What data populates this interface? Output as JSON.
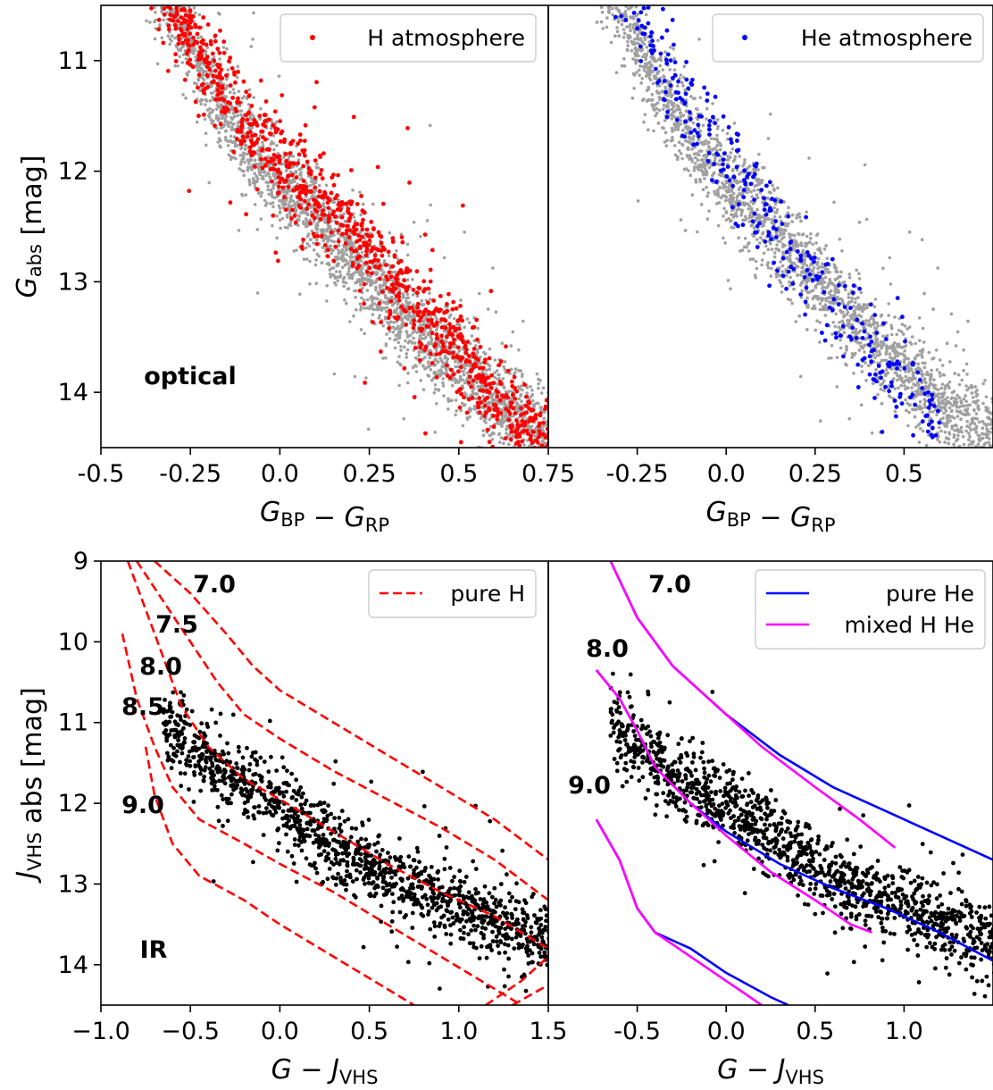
{
  "chart_data": [
    {
      "panel": "top-left",
      "type": "scatter",
      "xlabel": "G_BP − G_RP",
      "ylabel": "G_abs [mag]",
      "xlim": [
        -0.5,
        0.75
      ],
      "ylim": [
        14.5,
        10.5
      ],
      "xticks": [
        -0.5,
        -0.25,
        0.0,
        0.25,
        0.5,
        0.75
      ],
      "xtick_labels": [
        "-0.5",
        "-0.25",
        "0.0",
        "0.25",
        "0.5",
        "0.75"
      ],
      "yticks": [
        11,
        12,
        13,
        14
      ],
      "ytick_labels": [
        "11",
        "12",
        "13",
        "14"
      ],
      "annotation": "optical",
      "legend": {
        "position": "upper right",
        "entries": [
          {
            "label": "H atmosphere",
            "color": "#ff0000",
            "marker": "dot"
          }
        ]
      },
      "series": [
        {
          "name": "H atmosphere",
          "color": "#ff0000",
          "trend": [
            [
              -0.3,
              10.5
            ],
            [
              -0.2,
              11.1
            ],
            [
              -0.1,
              11.6
            ],
            [
              0.0,
              11.9
            ],
            [
              0.1,
              12.2
            ],
            [
              0.2,
              12.5
            ],
            [
              0.3,
              12.9
            ],
            [
              0.4,
              13.3
            ],
            [
              0.5,
              13.6
            ],
            [
              0.6,
              14.0
            ],
            [
              0.7,
              14.3
            ]
          ],
          "count": 1100
        },
        {
          "name": "",
          "color": "#a0a0a0",
          "trend": [
            [
              -0.3,
              10.5
            ],
            [
              -0.2,
              11.2
            ],
            [
              -0.1,
              11.7
            ],
            [
              0.0,
              12.1
            ],
            [
              0.1,
              12.4
            ],
            [
              0.2,
              12.8
            ],
            [
              0.3,
              13.1
            ],
            [
              0.4,
              13.5
            ],
            [
              0.5,
              13.8
            ],
            [
              0.6,
              14.1
            ],
            [
              0.75,
              14.4
            ]
          ],
          "count": 3000
        }
      ]
    },
    {
      "panel": "top-right",
      "type": "scatter",
      "xlabel": "G_BP − G_RP",
      "ylabel": "",
      "xlim": [
        -0.5,
        0.75
      ],
      "ylim": [
        14.5,
        10.5
      ],
      "xticks": [
        -0.25,
        0.0,
        0.25,
        0.5
      ],
      "xtick_labels": [
        "-0.25",
        "0.0",
        "0.25",
        "0.5"
      ],
      "legend": {
        "position": "upper right",
        "entries": [
          {
            "label": "He atmosphere",
            "color": "#0000ff",
            "marker": "dot"
          }
        ]
      },
      "series": [
        {
          "name": "He atmosphere",
          "color": "#0000ff",
          "trend": [
            [
              -0.25,
              10.6
            ],
            [
              -0.15,
              11.2
            ],
            [
              -0.05,
              11.7
            ],
            [
              0.05,
              12.1
            ],
            [
              0.15,
              12.6
            ],
            [
              0.25,
              13.0
            ],
            [
              0.35,
              13.4
            ],
            [
              0.45,
              13.8
            ],
            [
              0.55,
              14.1
            ]
          ],
          "count": 350
        },
        {
          "name": "",
          "color": "#a0a0a0",
          "trend": [
            [
              -0.3,
              10.5
            ],
            [
              -0.2,
              11.2
            ],
            [
              -0.1,
              11.7
            ],
            [
              0.0,
              12.1
            ],
            [
              0.1,
              12.4
            ],
            [
              0.2,
              12.8
            ],
            [
              0.3,
              13.1
            ],
            [
              0.4,
              13.5
            ],
            [
              0.5,
              13.8
            ],
            [
              0.6,
              14.1
            ],
            [
              0.75,
              14.4
            ]
          ],
          "count": 3000
        }
      ]
    },
    {
      "panel": "bottom-left",
      "type": "scatter",
      "xlabel": "G − J_VHS",
      "ylabel": "J_VHS abs [mag]",
      "xlim": [
        -1.0,
        1.5
      ],
      "ylim": [
        14.5,
        9.0
      ],
      "xticks": [
        -1.0,
        -0.5,
        0.0,
        0.5,
        1.0,
        1.5
      ],
      "xtick_labels": [
        "−1.0",
        "−0.5",
        "0.0",
        "0.5",
        "1.0",
        "1.5"
      ],
      "yticks": [
        9,
        10,
        11,
        12,
        13,
        14
      ],
      "ytick_labels": [
        "9",
        "10",
        "11",
        "12",
        "13",
        "14"
      ],
      "annotation": "IR",
      "legend": {
        "position": "upper right",
        "entries": [
          {
            "label": "pure H",
            "color": "#ff0000",
            "style": "dashed"
          }
        ]
      },
      "series": [
        {
          "name": "",
          "color": "#000000",
          "trend": [
            [
              -0.55,
              11.2
            ],
            [
              -0.3,
              11.7
            ],
            [
              0.0,
              12.0
            ],
            [
              0.3,
              12.5
            ],
            [
              0.6,
              12.9
            ],
            [
              0.9,
              13.2
            ],
            [
              1.2,
              13.45
            ],
            [
              1.5,
              13.7
            ]
          ],
          "count": 1300
        }
      ],
      "lines": [
        {
          "name": "pure H",
          "label": "7.0",
          "color": "#ff0000",
          "style": "dashed",
          "points": [
            [
              -0.7,
              9.0
            ],
            [
              -0.5,
              9.4
            ],
            [
              -0.3,
              9.9
            ],
            [
              -0.15,
              10.3
            ],
            [
              0.0,
              10.6
            ],
            [
              0.3,
              11.0
            ],
            [
              0.6,
              11.4
            ],
            [
              0.9,
              11.8
            ],
            [
              1.2,
              12.2
            ],
            [
              1.5,
              12.7
            ]
          ]
        },
        {
          "name": "pure H",
          "label": "7.5",
          "color": "#ff0000",
          "style": "dashed",
          "points": [
            [
              -0.8,
              9.0
            ],
            [
              -0.65,
              9.5
            ],
            [
              -0.5,
              10.0
            ],
            [
              -0.35,
              10.5
            ],
            [
              -0.2,
              10.9
            ],
            [
              0.0,
              11.2
            ],
            [
              0.3,
              11.6
            ],
            [
              0.6,
              11.95
            ],
            [
              0.9,
              12.3
            ],
            [
              1.2,
              12.7
            ],
            [
              1.5,
              13.2
            ]
          ]
        },
        {
          "name": "pure H",
          "label": "8.0",
          "color": "#ff0000",
          "style": "dashed",
          "points": [
            [
              -0.85,
              9.0
            ],
            [
              -0.75,
              9.6
            ],
            [
              -0.65,
              10.2
            ],
            [
              -0.55,
              10.8
            ],
            [
              -0.4,
              11.3
            ],
            [
              -0.2,
              11.7
            ],
            [
              0.0,
              11.95
            ],
            [
              0.3,
              12.35
            ],
            [
              0.6,
              12.75
            ],
            [
              0.9,
              13.1
            ],
            [
              1.2,
              13.4
            ],
            [
              1.5,
              13.8
            ]
          ]
        },
        {
          "name": "pure H",
          "label": "8.5",
          "color": "#ff0000",
          "style": "dashed",
          "points": [
            [
              -0.88,
              9.9
            ],
            [
              -0.8,
              10.7
            ],
            [
              -0.7,
              11.3
            ],
            [
              -0.6,
              11.8
            ],
            [
              -0.45,
              12.2
            ],
            [
              -0.2,
              12.5
            ],
            [
              0.0,
              12.75
            ],
            [
              0.3,
              13.1
            ],
            [
              0.6,
              13.5
            ],
            [
              0.9,
              13.9
            ],
            [
              1.2,
              14.3
            ],
            [
              1.35,
              14.5
            ]
          ]
        },
        {
          "name": "pure H",
          "label": "9.0",
          "color": "#ff0000",
          "style": "dashed",
          "points": [
            [
              -0.75,
              11.3
            ],
            [
              -0.7,
              11.9
            ],
            [
              -0.6,
              12.5
            ],
            [
              -0.45,
              12.9
            ],
            [
              -0.2,
              13.2
            ],
            [
              0.0,
              13.5
            ],
            [
              0.3,
              13.9
            ],
            [
              0.6,
              14.3
            ],
            [
              0.75,
              14.5
            ]
          ]
        },
        {
          "name": "",
          "label": "",
          "color": "#ff0000",
          "style": "dashed",
          "points": [
            [
              1.15,
              14.5
            ],
            [
              1.35,
              14.2
            ],
            [
              1.5,
              13.9
            ]
          ]
        },
        {
          "name": "",
          "label": "",
          "color": "#ff0000",
          "style": "dashed",
          "points": [
            [
              1.3,
              14.5
            ],
            [
              1.5,
              14.25
            ]
          ]
        }
      ]
    },
    {
      "panel": "bottom-right",
      "type": "scatter",
      "xlabel": "G − J_VHS",
      "ylabel": "",
      "xlim": [
        -1.0,
        1.5
      ],
      "ylim": [
        14.5,
        9.0
      ],
      "xticks": [
        -0.5,
        0.0,
        0.5,
        1.0
      ],
      "xtick_labels": [
        "-0.5",
        "0.0",
        "0.5",
        "1.0"
      ],
      "legend": {
        "position": "upper right",
        "entries": [
          {
            "label": "pure He",
            "color": "#0000ff",
            "style": "solid"
          },
          {
            "label": "mixed H He",
            "color": "#ff00ff",
            "style": "solid"
          }
        ]
      },
      "series": [
        {
          "name": "",
          "color": "#000000",
          "trend": [
            [
              -0.55,
              11.2
            ],
            [
              -0.3,
              11.7
            ],
            [
              0.0,
              12.0
            ],
            [
              0.3,
              12.5
            ],
            [
              0.6,
              12.9
            ],
            [
              0.9,
              13.2
            ],
            [
              1.2,
              13.45
            ],
            [
              1.5,
              13.7
            ]
          ],
          "count": 1300
        }
      ],
      "lines": [
        {
          "name": "pure He",
          "label": "7.0",
          "color": "#0000ff",
          "style": "solid",
          "points": [
            [
              -0.65,
              9.0
            ],
            [
              -0.5,
              9.7
            ],
            [
              -0.3,
              10.3
            ],
            [
              0.0,
              10.9
            ],
            [
              0.3,
              11.4
            ],
            [
              0.6,
              11.8
            ],
            [
              0.9,
              12.1
            ],
            [
              1.2,
              12.4
            ],
            [
              1.5,
              12.7
            ]
          ]
        },
        {
          "name": "mixed H He",
          "label": "",
          "color": "#ff00ff",
          "style": "solid",
          "points": [
            [
              -0.65,
              9.0
            ],
            [
              -0.5,
              9.7
            ],
            [
              -0.3,
              10.3
            ],
            [
              -0.1,
              10.7
            ],
            [
              0.2,
              11.3
            ],
            [
              0.5,
              11.8
            ],
            [
              0.75,
              12.2
            ],
            [
              0.95,
              12.55
            ]
          ]
        },
        {
          "name": "pure He",
          "label": "8.0",
          "color": "#0000ff",
          "style": "solid",
          "points": [
            [
              -0.73,
              10.35
            ],
            [
              -0.6,
              10.7
            ],
            [
              -0.5,
              11.1
            ],
            [
              -0.4,
              11.55
            ],
            [
              -0.2,
              12.0
            ],
            [
              0.0,
              12.35
            ],
            [
              0.3,
              12.75
            ],
            [
              0.6,
              13.05
            ],
            [
              0.9,
              13.3
            ],
            [
              1.2,
              13.6
            ],
            [
              1.5,
              13.95
            ]
          ]
        },
        {
          "name": "mixed H He",
          "label": "",
          "color": "#ff00ff",
          "style": "solid",
          "points": [
            [
              -0.73,
              10.35
            ],
            [
              -0.6,
              10.7
            ],
            [
              -0.5,
              11.1
            ],
            [
              -0.4,
              11.55
            ],
            [
              -0.2,
              12.0
            ],
            [
              0.0,
              12.4
            ],
            [
              0.25,
              12.85
            ],
            [
              0.5,
              13.2
            ],
            [
              0.7,
              13.5
            ],
            [
              0.82,
              13.6
            ]
          ]
        },
        {
          "name": "pure He",
          "label": "9.0",
          "color": "#0000ff",
          "style": "solid",
          "points": [
            [
              -0.73,
              12.2
            ],
            [
              -0.6,
              12.7
            ],
            [
              -0.5,
              13.3
            ],
            [
              -0.4,
              13.6
            ],
            [
              -0.2,
              13.8
            ],
            [
              0.0,
              14.1
            ],
            [
              0.25,
              14.4
            ],
            [
              0.35,
              14.5
            ]
          ]
        },
        {
          "name": "mixed H He",
          "label": "",
          "color": "#ff00ff",
          "style": "solid",
          "points": [
            [
              -0.73,
              12.2
            ],
            [
              -0.6,
              12.7
            ],
            [
              -0.5,
              13.3
            ],
            [
              -0.4,
              13.6
            ],
            [
              -0.2,
              13.9
            ],
            [
              0.0,
              14.2
            ],
            [
              0.2,
              14.5
            ]
          ]
        }
      ]
    }
  ]
}
